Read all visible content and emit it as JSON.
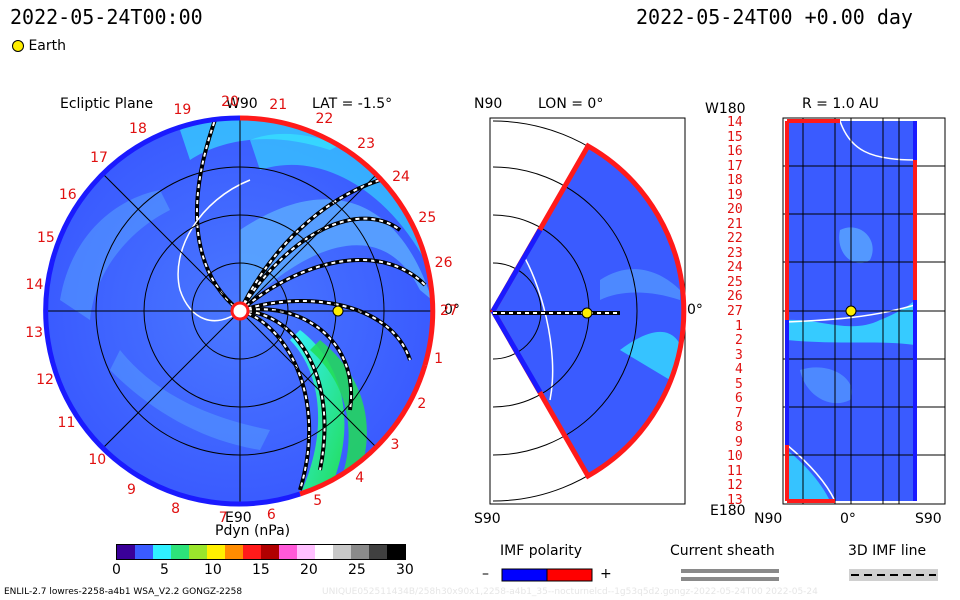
{
  "header": {
    "timestamp_left": "2022-05-24T00:00",
    "timestamp_right": "2022-05-24T00 +0.00 day",
    "earth_legend": "Earth"
  },
  "panel_left": {
    "title": "Ecliptic Plane",
    "lat_label": "LAT = -1.5°",
    "top_label": "W90",
    "bottom_label": "E90",
    "right_label": "0°",
    "sector_numbers": [
      "20",
      "21",
      "22",
      "23",
      "24",
      "25",
      "26",
      "27",
      "1",
      "2",
      "3",
      "4",
      "5",
      "6",
      "7",
      "8",
      "9",
      "10",
      "11",
      "12",
      "13",
      "14",
      "15",
      "16",
      "17",
      "18",
      "19"
    ]
  },
  "panel_mid": {
    "lon_label": "LON = 0°",
    "top_label": "N90",
    "bottom_label": "S90",
    "right_label": "0°"
  },
  "panel_right": {
    "r_label": "R = 1.0 AU",
    "top_left_label": "W180",
    "bottom_left_label": "E180",
    "bottom_labels": [
      "N90",
      "0°",
      "S90"
    ],
    "side_numbers": [
      "14",
      "15",
      "16",
      "17",
      "18",
      "19",
      "20",
      "21",
      "22",
      "23",
      "24",
      "25",
      "26",
      "27",
      "1",
      "2",
      "3",
      "4",
      "5",
      "6",
      "7",
      "8",
      "9",
      "10",
      "11",
      "12",
      "13"
    ]
  },
  "colorbar": {
    "title": "Pdyn (nPa)",
    "ticks": [
      "0",
      "5",
      "10",
      "15",
      "20",
      "25",
      "30"
    ],
    "colors": [
      "#3a0099",
      "#3a5bff",
      "#2ff0ff",
      "#2de37a",
      "#9ae62c",
      "#fff000",
      "#ff8c00",
      "#ff1a1a",
      "#b00000",
      "#ff59d8",
      "#ffc0ff",
      "#ffffff",
      "#c8c8c8",
      "#8a8a8a",
      "#404040",
      "#000000"
    ]
  },
  "legend": {
    "imf_polarity_title": "IMF polarity",
    "imf_minus": "–",
    "imf_plus": "+",
    "imf_colors": {
      "negative": "#0000ff",
      "positive": "#ff0000"
    },
    "current_sheath_title": "Current sheath",
    "imf_line_title": "3D IMF line"
  },
  "footer": {
    "model_info": "ENLIL-2.7 lowres-2258-a4b1 WSA_V2.2 GONGZ-2258",
    "watermark": "UNIQUE052511434B/258h30x90x1,2258-a4b1_35--nocturnelcd--1g53q5d2.gongz-2022-05-24T00  2022-05-24"
  },
  "map_colors": {
    "base_blue": "#3a5bff",
    "light_blue": "#5aa8ff",
    "cyan": "#35f0ff",
    "green": "#22dd55",
    "polarity_neg": "#1a1aff",
    "polarity_pos": "#ff1a1a",
    "earth": "#ffee00"
  }
}
